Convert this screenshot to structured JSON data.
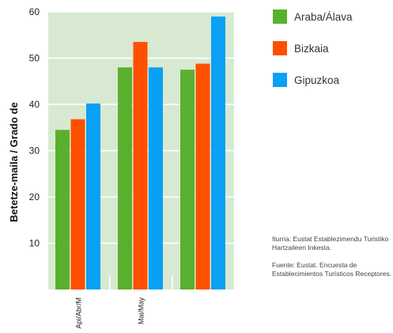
{
  "chart_data": {
    "type": "bar",
    "ylabel": "Betetze-maila / Grado de",
    "ylim": [
      0,
      60
    ],
    "yticks": [
      10,
      20,
      30,
      40,
      50,
      60
    ],
    "grid": true,
    "legend_position": "right",
    "categories": [
      "Api/Abr/M",
      "Mai/May",
      ""
    ],
    "series": [
      {
        "name": "Araba/Álava",
        "color": "#5ab02e",
        "values": [
          34.5,
          48,
          47.5
        ]
      },
      {
        "name": "Bizkaia",
        "color": "#ff4f00",
        "values": [
          36.8,
          53.5,
          48.8
        ]
      },
      {
        "name": "Gipuzkoa",
        "color": "#0aa0f5",
        "values": [
          40.2,
          48,
          59
        ]
      }
    ],
    "plot_background": "#d7e9d0",
    "notes": [
      "Iturria: Eustat Establezimendu Turistiko Hartzaileen Inkesta.",
      "Fuente: Eustat. Encuesta de Establecimientos Turísticos Receptores."
    ]
  }
}
